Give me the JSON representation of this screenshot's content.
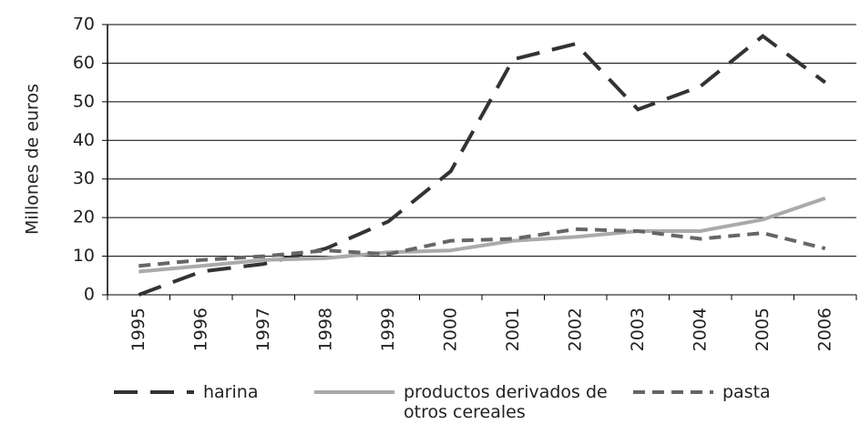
{
  "chart_data": {
    "type": "line",
    "y_label": "Millones de euros",
    "categories": [
      "1995",
      "1996",
      "1997",
      "1998",
      "1999",
      "2000",
      "2001",
      "2002",
      "2003",
      "2004",
      "2005",
      "2006"
    ],
    "series": [
      {
        "name": "harina",
        "color": "#333333",
        "dash": "26 14",
        "values": [
          0,
          6,
          8,
          12,
          19,
          32,
          61,
          65,
          48,
          54,
          67,
          55
        ]
      },
      {
        "name": "productos derivados de otros cereales",
        "color": "#aaaaaa",
        "dash": "none",
        "values": [
          6,
          7.5,
          9,
          9.5,
          11,
          11.5,
          14,
          15,
          16.5,
          16.5,
          19.5,
          25
        ]
      },
      {
        "name": "pasta",
        "color": "#666666",
        "dash": "13 8",
        "values": [
          7.5,
          9,
          10,
          11.5,
          10.5,
          14,
          14.5,
          17,
          16.5,
          14.5,
          16,
          12
        ]
      }
    ],
    "ylim": [
      0,
      70
    ],
    "yticks": [
      0,
      10,
      20,
      30,
      40,
      50,
      60,
      70
    ],
    "grid": true
  }
}
